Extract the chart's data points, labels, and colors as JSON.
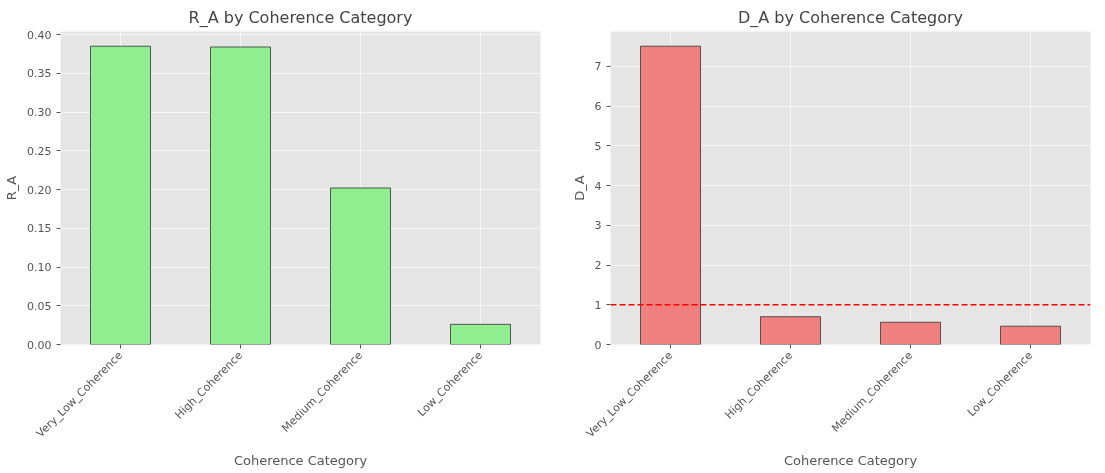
{
  "chart_data": [
    {
      "type": "bar",
      "title": "R_A by Coherence Category",
      "xlabel": "Coherence Category",
      "ylabel": "R_A",
      "categories": [
        "Very_Low_Coherence",
        "High_Coherence",
        "Medium_Coherence",
        "Low_Coherence"
      ],
      "values": [
        0.385,
        0.384,
        0.202,
        0.026
      ],
      "color": "#90ee90",
      "ylim": [
        0,
        0.404
      ],
      "yticks": [
        {
          "value": 0,
          "label": "0.00"
        },
        {
          "value": 0.05,
          "label": "0.05"
        },
        {
          "value": 0.1,
          "label": "0.10"
        },
        {
          "value": 0.15,
          "label": "0.15"
        },
        {
          "value": 0.2,
          "label": "0.20"
        },
        {
          "value": 0.25,
          "label": "0.25"
        },
        {
          "value": 0.3,
          "label": "0.30"
        },
        {
          "value": 0.35,
          "label": "0.35"
        },
        {
          "value": 0.4,
          "label": "0.40"
        }
      ],
      "grid": true
    },
    {
      "type": "bar",
      "title": "D_A by Coherence Category",
      "xlabel": "Coherence Category",
      "ylabel": "D_A",
      "categories": [
        "Very_Low_Coherence",
        "High_Coherence",
        "Medium_Coherence",
        "Low_Coherence"
      ],
      "values": [
        7.51,
        0.7,
        0.56,
        0.46
      ],
      "color": "#f08080",
      "ylim": [
        0,
        7.88
      ],
      "yticks": [
        0,
        1,
        2,
        3,
        4,
        5,
        6,
        7
      ],
      "grid": true,
      "ref_lines": [
        {
          "axis": "y",
          "value": 1,
          "color": "#ff0000",
          "line_style": "dashed"
        }
      ]
    }
  ]
}
